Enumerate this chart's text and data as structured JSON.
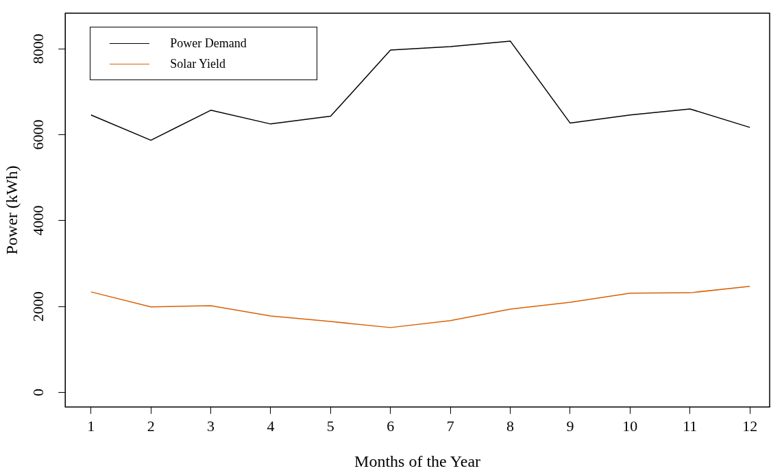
{
  "chart_data": {
    "type": "line",
    "xlabel": "Months of the Year",
    "ylabel": "Power (kWh)",
    "x": [
      1,
      2,
      3,
      4,
      5,
      6,
      7,
      8,
      9,
      10,
      11,
      12
    ],
    "series": [
      {
        "name": "Power Demand",
        "color": "#000000",
        "values": [
          6460,
          5870,
          6570,
          6250,
          6430,
          7970,
          8050,
          8180,
          6270,
          6460,
          6600,
          6170
        ]
      },
      {
        "name": "Solar Yield",
        "color": "#d95f02",
        "values": [
          2340,
          1990,
          2020,
          1780,
          1650,
          1510,
          1670,
          1940,
          2100,
          2310,
          2320,
          2470
        ]
      }
    ],
    "xlim": [
      0.57,
      12.33
    ],
    "xticks": [
      1,
      2,
      3,
      4,
      5,
      6,
      7,
      8,
      9,
      10,
      11,
      12
    ],
    "ylim": [
      -340,
      8830
    ],
    "yticks": [
      0,
      2000,
      4000,
      6000,
      8000
    ],
    "grid": false,
    "legend": "top left",
    "marker": "none",
    "line_style": "solid"
  }
}
